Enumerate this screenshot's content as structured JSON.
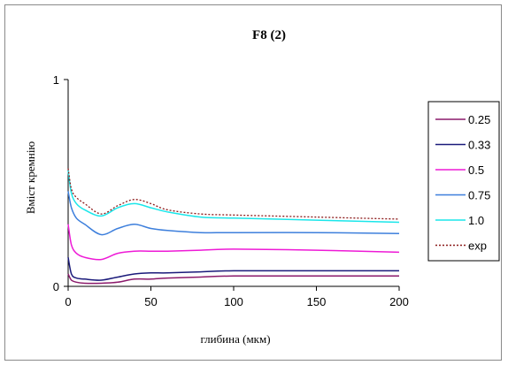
{
  "chart_data": {
    "type": "line",
    "title": "F8 (2)",
    "xlabel": "глибина (мкм)",
    "ylabel": "Вміст кремнію",
    "xlim": [
      0,
      200
    ],
    "ylim": [
      0,
      1
    ],
    "xticks": [
      "0",
      "50",
      "100",
      "150",
      "200"
    ],
    "yticks": [
      "0",
      "1"
    ],
    "grid": false,
    "legend_position": "right",
    "series": [
      {
        "name": "0.25",
        "color": "#8b1a6b",
        "dash": "solid",
        "x": [
          0,
          2,
          5,
          10,
          20,
          30,
          40,
          50,
          60,
          80,
          100,
          150,
          200
        ],
        "y": [
          0.06,
          0.03,
          0.02,
          0.015,
          0.015,
          0.02,
          0.035,
          0.035,
          0.04,
          0.045,
          0.05,
          0.05,
          0.05
        ]
      },
      {
        "name": "0.33",
        "color": "#1a1a7a",
        "dash": "solid",
        "x": [
          0,
          2,
          5,
          10,
          20,
          30,
          40,
          50,
          60,
          80,
          100,
          150,
          200
        ],
        "y": [
          0.14,
          0.06,
          0.04,
          0.035,
          0.03,
          0.045,
          0.06,
          0.065,
          0.065,
          0.07,
          0.075,
          0.075,
          0.075
        ]
      },
      {
        "name": "0.5",
        "color": "#ee1ad6",
        "dash": "solid",
        "x": [
          0,
          2,
          5,
          10,
          20,
          30,
          40,
          50,
          60,
          80,
          100,
          150,
          200
        ],
        "y": [
          0.3,
          0.2,
          0.16,
          0.14,
          0.13,
          0.16,
          0.17,
          0.17,
          0.17,
          0.175,
          0.18,
          0.175,
          0.165
        ]
      },
      {
        "name": "0.75",
        "color": "#3d7fdc",
        "dash": "solid",
        "x": [
          0,
          2,
          5,
          10,
          20,
          30,
          40,
          50,
          60,
          80,
          100,
          150,
          200
        ],
        "y": [
          0.46,
          0.38,
          0.33,
          0.3,
          0.25,
          0.28,
          0.3,
          0.28,
          0.27,
          0.26,
          0.26,
          0.26,
          0.255
        ]
      },
      {
        "name": "1.0",
        "color": "#1ae6ea",
        "dash": "solid",
        "x": [
          0,
          2,
          5,
          10,
          20,
          30,
          40,
          50,
          60,
          80,
          100,
          150,
          200
        ],
        "y": [
          0.56,
          0.45,
          0.4,
          0.37,
          0.34,
          0.38,
          0.4,
          0.38,
          0.36,
          0.335,
          0.33,
          0.32,
          0.31
        ]
      },
      {
        "name": "exp",
        "color": "#8b1a1a",
        "dash": "dotted",
        "x": [
          0,
          2,
          5,
          10,
          20,
          30,
          40,
          50,
          60,
          80,
          100,
          150,
          200
        ],
        "y": [
          0.57,
          0.47,
          0.43,
          0.4,
          0.35,
          0.39,
          0.42,
          0.4,
          0.37,
          0.35,
          0.345,
          0.335,
          0.325
        ]
      }
    ]
  }
}
